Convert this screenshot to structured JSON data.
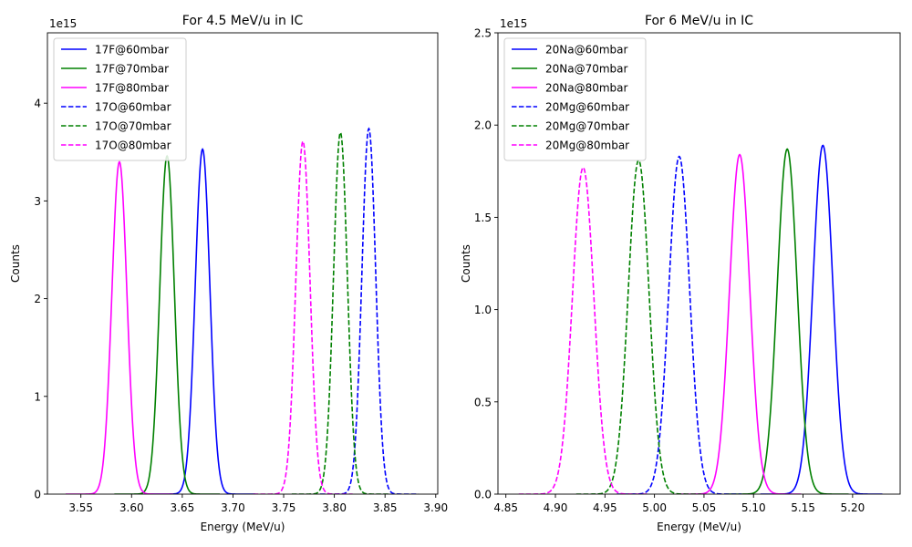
{
  "chart_data": [
    {
      "type": "line",
      "title": "For 4.5 MeV/u in IC",
      "xlabel": "Energy (MeV/u)",
      "ylabel": "Counts",
      "y_offset_label": "1e15",
      "xlim": [
        3.517,
        3.902
      ],
      "ylim": [
        0,
        4.72
      ],
      "x_ticks": [
        3.55,
        3.6,
        3.65,
        3.7,
        3.75,
        3.8,
        3.85,
        3.9
      ],
      "x_tick_labels": [
        "3.55",
        "3.60",
        "3.65",
        "3.70",
        "3.75",
        "3.80",
        "3.85",
        "3.90"
      ],
      "y_ticks": [
        0,
        1,
        2,
        3,
        4
      ],
      "y_tick_labels": [
        "0",
        "1",
        "2",
        "3",
        "4"
      ],
      "grid": false,
      "legend_position": "top-left",
      "series": [
        {
          "name": "17F@60mbar",
          "color": "#0000ff",
          "dash": "solid",
          "peak_x": 3.67,
          "peak_y": 3.53,
          "sigma": 0.0072,
          "x_range": [
            3.618,
            3.722
          ]
        },
        {
          "name": "17F@70mbar",
          "color": "#008000",
          "dash": "solid",
          "peak_x": 3.635,
          "peak_y": 3.46,
          "sigma": 0.0072,
          "x_range": [
            3.583,
            3.687
          ]
        },
        {
          "name": "17F@80mbar",
          "color": "#ff00ff",
          "dash": "solid",
          "peak_x": 3.588,
          "peak_y": 3.4,
          "sigma": 0.0074,
          "x_range": [
            3.535,
            3.641
          ]
        },
        {
          "name": "17O@60mbar",
          "color": "#0000ff",
          "dash": "dashed",
          "peak_x": 3.834,
          "peak_y": 3.74,
          "sigma": 0.0068,
          "x_range": [
            3.786,
            3.883
          ]
        },
        {
          "name": "17O@70mbar",
          "color": "#008000",
          "dash": "dashed",
          "peak_x": 3.806,
          "peak_y": 3.7,
          "sigma": 0.0068,
          "x_range": [
            3.758,
            3.855
          ]
        },
        {
          "name": "17O@80mbar",
          "color": "#ff00ff",
          "dash": "dashed",
          "peak_x": 3.769,
          "peak_y": 3.61,
          "sigma": 0.007,
          "x_range": [
            3.72,
            3.818
          ]
        }
      ]
    },
    {
      "type": "line",
      "title": "For 6 MeV/u in IC",
      "xlabel": "Energy (MeV/u)",
      "ylabel": "Counts",
      "y_offset_label": "1e15",
      "xlim": [
        4.842,
        5.248
      ],
      "ylim": [
        0,
        2.5
      ],
      "x_ticks": [
        4.85,
        4.9,
        4.95,
        5.0,
        5.05,
        5.1,
        5.15,
        5.2
      ],
      "x_tick_labels": [
        "4.85",
        "4.90",
        "4.95",
        "5.00",
        "5.05",
        "5.10",
        "5.15",
        "5.20"
      ],
      "y_ticks": [
        0,
        0.5,
        1.0,
        1.5,
        2.0,
        2.5
      ],
      "y_tick_labels": [
        "0.0",
        "0.5",
        "1.0",
        "1.5",
        "2.0",
        "2.5"
      ],
      "grid": false,
      "legend_position": "top-left",
      "series": [
        {
          "name": "20Na@60mbar",
          "color": "#0000ff",
          "dash": "solid",
          "peak_x": 5.17,
          "peak_y": 1.89,
          "sigma": 0.01,
          "x_range": [
            5.107,
            5.23
          ]
        },
        {
          "name": "20Na@70mbar",
          "color": "#008000",
          "dash": "solid",
          "peak_x": 5.134,
          "peak_y": 1.87,
          "sigma": 0.01,
          "x_range": [
            5.072,
            5.196
          ]
        },
        {
          "name": "20Na@80mbar",
          "color": "#ff00ff",
          "dash": "solid",
          "peak_x": 5.086,
          "peak_y": 1.84,
          "sigma": 0.0102,
          "x_range": [
            5.024,
            5.148
          ]
        },
        {
          "name": "20Mg@60mbar",
          "color": "#0000ff",
          "dash": "dashed",
          "peak_x": 5.025,
          "peak_y": 1.83,
          "sigma": 0.0105,
          "x_range": [
            4.962,
            5.088
          ]
        },
        {
          "name": "20Mg@70mbar",
          "color": "#008000",
          "dash": "dashed",
          "peak_x": 4.984,
          "peak_y": 1.81,
          "sigma": 0.0105,
          "x_range": [
            4.921,
            5.047
          ]
        },
        {
          "name": "20Mg@80mbar",
          "color": "#ff00ff",
          "dash": "dashed",
          "peak_x": 4.928,
          "peak_y": 1.77,
          "sigma": 0.0108,
          "x_range": [
            4.863,
            4.993
          ]
        }
      ]
    }
  ]
}
